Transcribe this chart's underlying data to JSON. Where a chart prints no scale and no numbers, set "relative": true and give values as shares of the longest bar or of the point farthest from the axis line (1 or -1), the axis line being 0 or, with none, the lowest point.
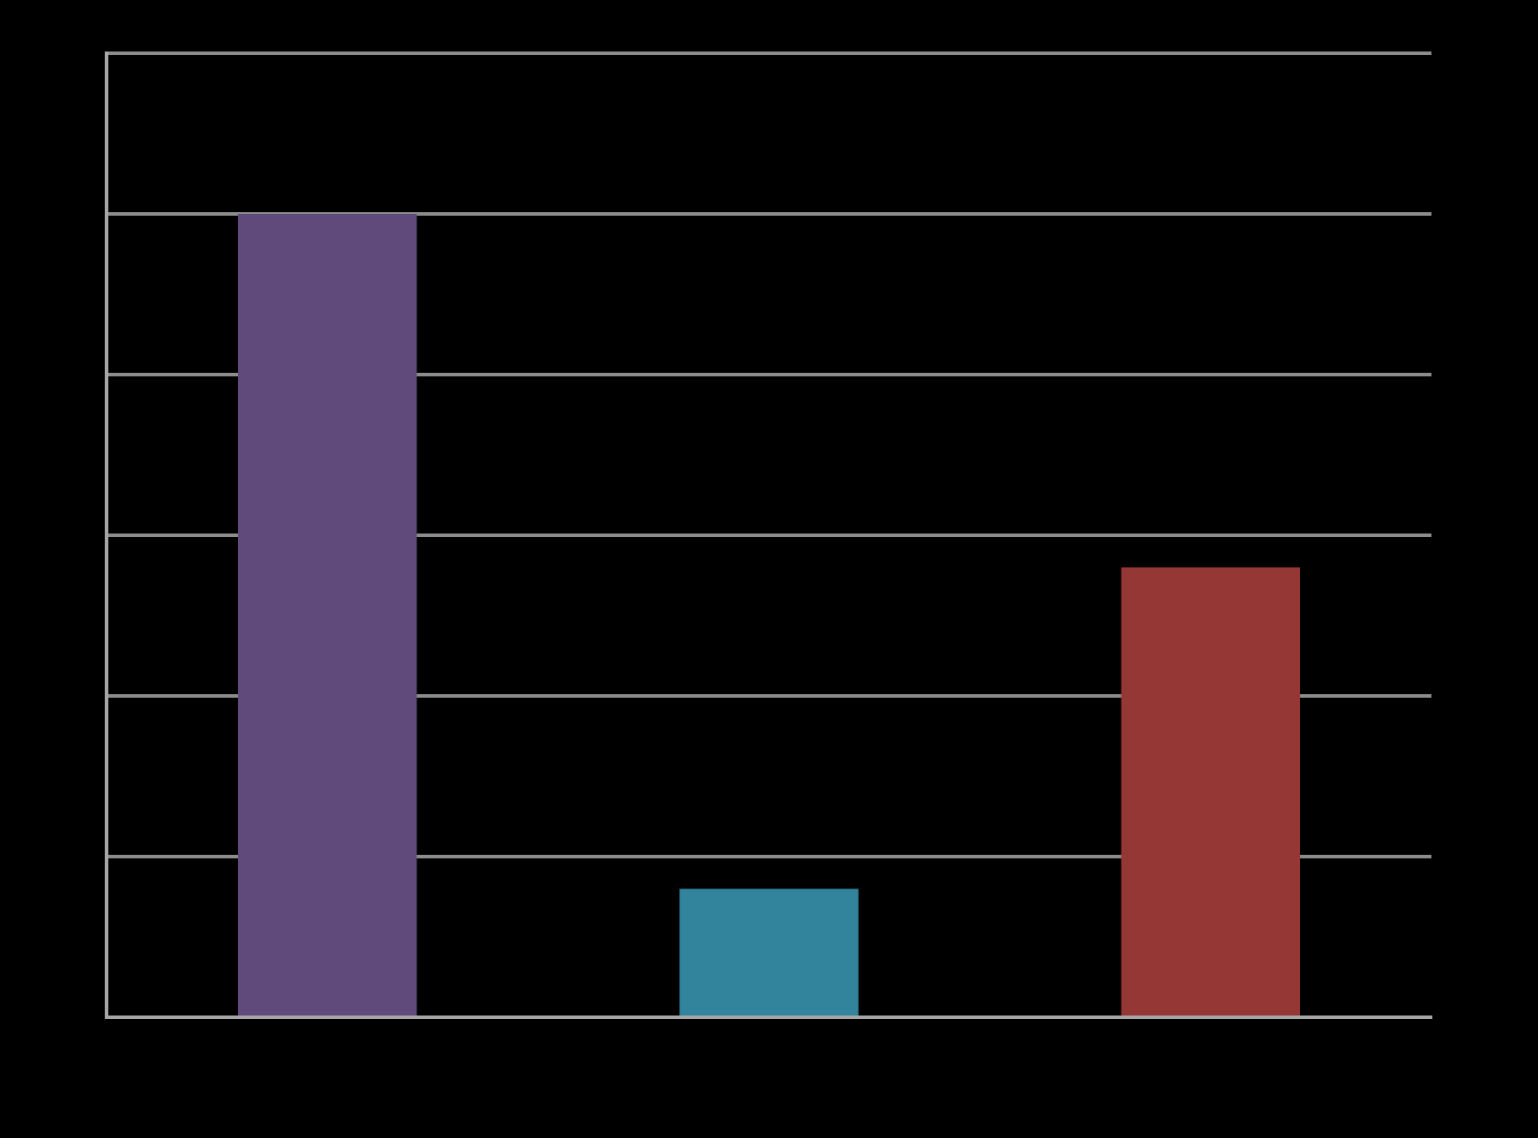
{
  "chart_data": {
    "type": "bar",
    "relative": true,
    "categories": [
      null,
      null,
      null
    ],
    "values": [
      1,
      0.16,
      0.56
    ],
    "colors": [
      "#604a7b",
      "#31849b",
      "#953735"
    ],
    "grid": "y",
    "tick_labels": false,
    "legend": false
  }
}
